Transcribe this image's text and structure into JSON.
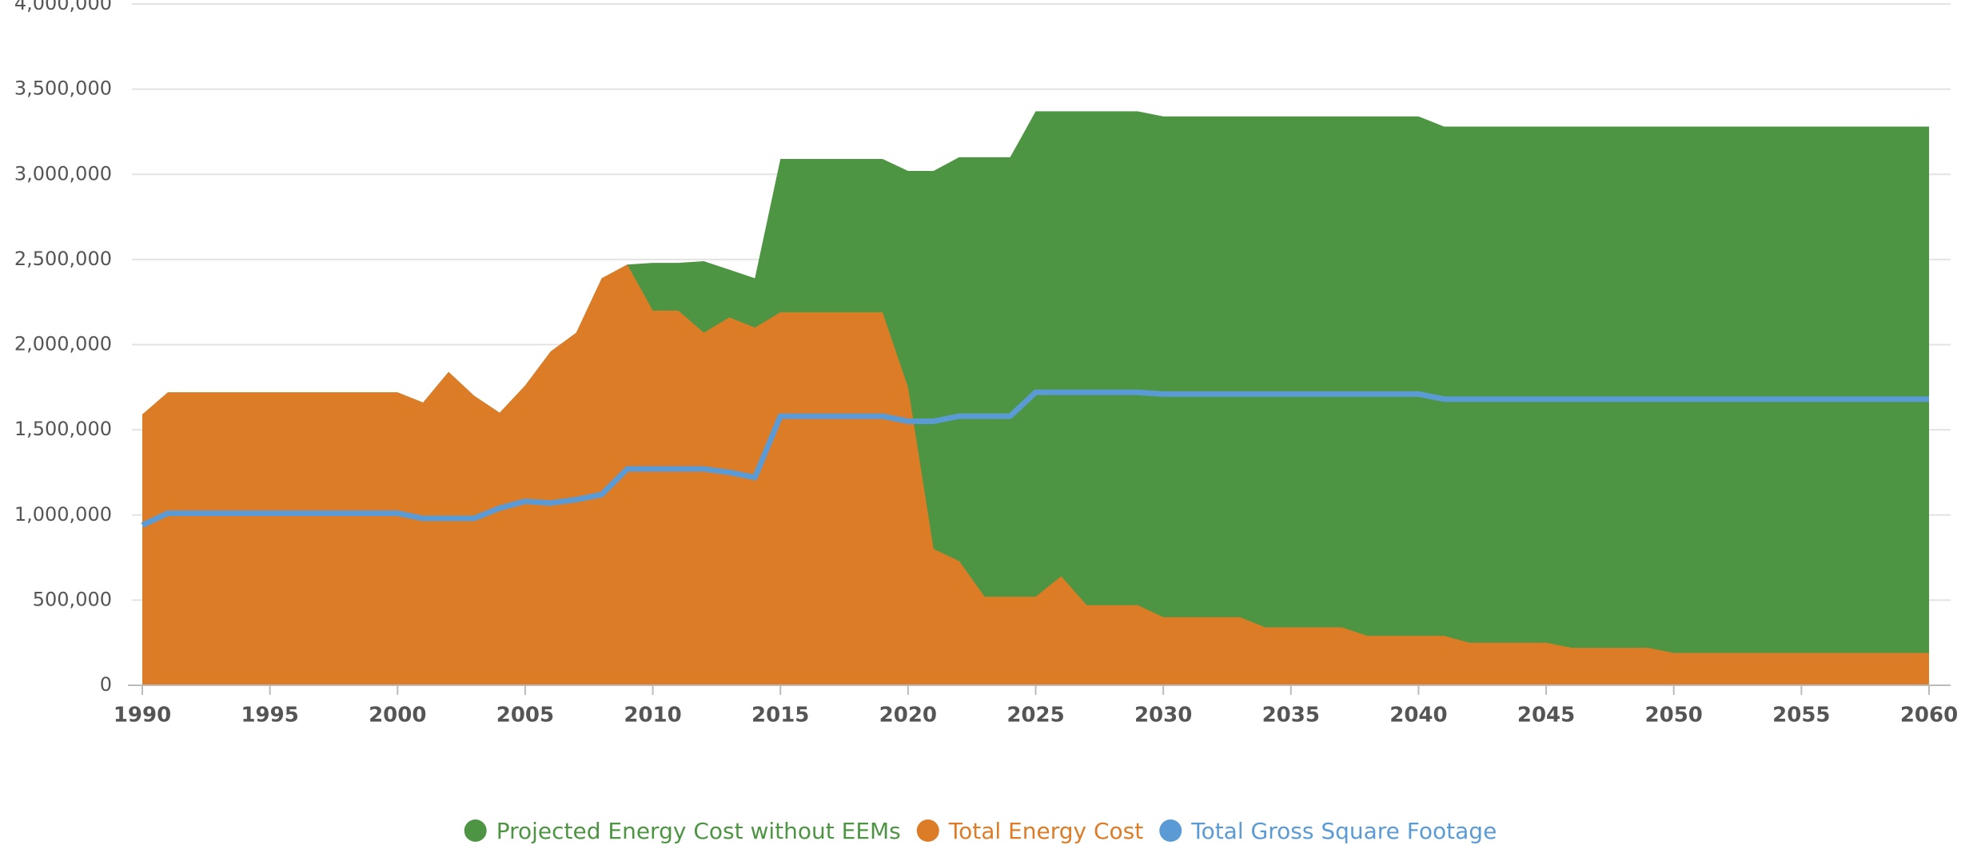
{
  "chart_data": {
    "type": "area",
    "x": [
      1990,
      1991,
      1992,
      1993,
      1994,
      1995,
      1996,
      1997,
      1998,
      1999,
      2000,
      2001,
      2002,
      2003,
      2004,
      2005,
      2006,
      2007,
      2008,
      2009,
      2010,
      2011,
      2012,
      2013,
      2014,
      2015,
      2016,
      2017,
      2018,
      2019,
      2020,
      2021,
      2022,
      2023,
      2024,
      2025,
      2026,
      2027,
      2028,
      2029,
      2030,
      2031,
      2032,
      2033,
      2034,
      2035,
      2036,
      2037,
      2038,
      2039,
      2040,
      2041,
      2042,
      2043,
      2044,
      2045,
      2046,
      2047,
      2048,
      2049,
      2050,
      2051,
      2052,
      2053,
      2054,
      2055,
      2056,
      2057,
      2058,
      2059,
      2060
    ],
    "series": [
      {
        "name": "Projected Energy Cost without EEMs",
        "color": "#4e9543",
        "type": "area",
        "values": [
          1590000,
          1720000,
          1720000,
          1720000,
          1720000,
          1720000,
          1720000,
          1720000,
          1720000,
          1720000,
          1720000,
          1660000,
          1840000,
          1700000,
          1600000,
          1760000,
          1960000,
          2070000,
          2390000,
          2470000,
          2480000,
          2480000,
          2490000,
          2440000,
          2390000,
          3090000,
          3090000,
          3090000,
          3090000,
          3090000,
          3020000,
          3020000,
          3100000,
          3100000,
          3100000,
          3370000,
          3370000,
          3370000,
          3370000,
          3370000,
          3340000,
          3340000,
          3340000,
          3340000,
          3340000,
          3340000,
          3340000,
          3340000,
          3340000,
          3340000,
          3340000,
          3280000,
          3280000,
          3280000,
          3280000,
          3280000,
          3280000,
          3280000,
          3280000,
          3280000,
          3280000,
          3280000,
          3280000,
          3280000,
          3280000,
          3280000,
          3280000,
          3280000,
          3280000,
          3280000,
          3280000
        ]
      },
      {
        "name": "Total Energy Cost",
        "color": "#dd7c27",
        "type": "area",
        "values": [
          1590000,
          1720000,
          1720000,
          1720000,
          1720000,
          1720000,
          1720000,
          1720000,
          1720000,
          1720000,
          1720000,
          1660000,
          1840000,
          1700000,
          1600000,
          1760000,
          1960000,
          2070000,
          2390000,
          2470000,
          2200000,
          2200000,
          2070000,
          2160000,
          2100000,
          2190000,
          2190000,
          2190000,
          2190000,
          2190000,
          1750000,
          800000,
          730000,
          520000,
          520000,
          520000,
          640000,
          470000,
          470000,
          470000,
          400000,
          400000,
          400000,
          400000,
          340000,
          340000,
          340000,
          340000,
          290000,
          290000,
          290000,
          290000,
          250000,
          250000,
          250000,
          250000,
          220000,
          220000,
          220000,
          220000,
          190000,
          190000,
          190000,
          190000,
          190000,
          190000,
          190000,
          190000,
          190000,
          190000,
          190000
        ]
      },
      {
        "name": "Total Gross Square Footage",
        "color": "#5b9bd5",
        "type": "line",
        "values": [
          940000,
          1010000,
          1010000,
          1010000,
          1010000,
          1010000,
          1010000,
          1010000,
          1010000,
          1010000,
          1010000,
          980000,
          980000,
          980000,
          1040000,
          1080000,
          1070000,
          1090000,
          1120000,
          1270000,
          1270000,
          1270000,
          1270000,
          1250000,
          1220000,
          1580000,
          1580000,
          1580000,
          1580000,
          1580000,
          1550000,
          1550000,
          1580000,
          1580000,
          1580000,
          1720000,
          1720000,
          1720000,
          1720000,
          1720000,
          1710000,
          1710000,
          1710000,
          1710000,
          1710000,
          1710000,
          1710000,
          1710000,
          1710000,
          1710000,
          1710000,
          1680000,
          1680000,
          1680000,
          1680000,
          1680000,
          1680000,
          1680000,
          1680000,
          1680000,
          1680000,
          1680000,
          1680000,
          1680000,
          1680000,
          1680000,
          1680000,
          1680000,
          1680000,
          1680000,
          1680000
        ]
      }
    ],
    "xlim": [
      1990,
      2060
    ],
    "xticks": [
      1990,
      1995,
      2000,
      2005,
      2010,
      2015,
      2020,
      2025,
      2030,
      2035,
      2040,
      2045,
      2050,
      2055,
      2060
    ],
    "ylim": [
      0,
      4000000
    ],
    "yticks": [
      0,
      {
        "value": 500000,
        "label": "500,000"
      },
      {
        "value": 1000000,
        "label": "1,000,000"
      },
      {
        "value": 1500000,
        "label": "1,500,000"
      },
      {
        "value": 2000000,
        "label": "2,000,000"
      },
      {
        "value": 2500000,
        "label": "2,500,000"
      },
      {
        "value": 3000000,
        "label": "3,000,000"
      },
      {
        "value": 3500000,
        "label": "3,500,000"
      },
      {
        "value": 4000000,
        "label": "4,000,000"
      }
    ],
    "grid": true,
    "legend": "bottom"
  }
}
